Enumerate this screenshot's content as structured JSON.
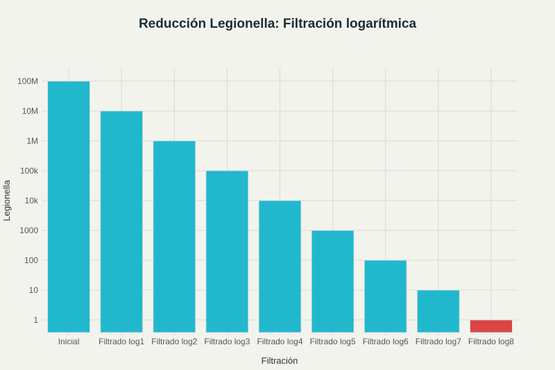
{
  "chart_data": {
    "type": "bar",
    "title": "Reducción Legionella: Filtración logarítmica",
    "xlabel": "Filtración",
    "ylabel": "Legionella",
    "yscale": "log",
    "ylim": [
      0.38,
      275000000
    ],
    "grid": true,
    "categories": [
      "Inicial",
      "Filtrado log1",
      "Filtrado log2",
      "Filtrado log3",
      "Filtrado log4",
      "Filtrado log5",
      "Filtrado log6",
      "Filtrado log7",
      "Filtrado log8"
    ],
    "values": [
      100000000,
      10000000,
      1000000,
      100000,
      10000,
      1000,
      100,
      10,
      1
    ],
    "colors": [
      "#21b8ce",
      "#21b8ce",
      "#21b8ce",
      "#21b8ce",
      "#21b8ce",
      "#21b8ce",
      "#21b8ce",
      "#21b8ce",
      "#db4545"
    ],
    "yticks": [
      1,
      10,
      100,
      1000,
      10000,
      100000,
      1000000,
      10000000,
      100000000
    ],
    "ytick_labels": [
      "1",
      "10",
      "100",
      "1000",
      "10k",
      "100k",
      "1M",
      "10M",
      "100M"
    ]
  }
}
